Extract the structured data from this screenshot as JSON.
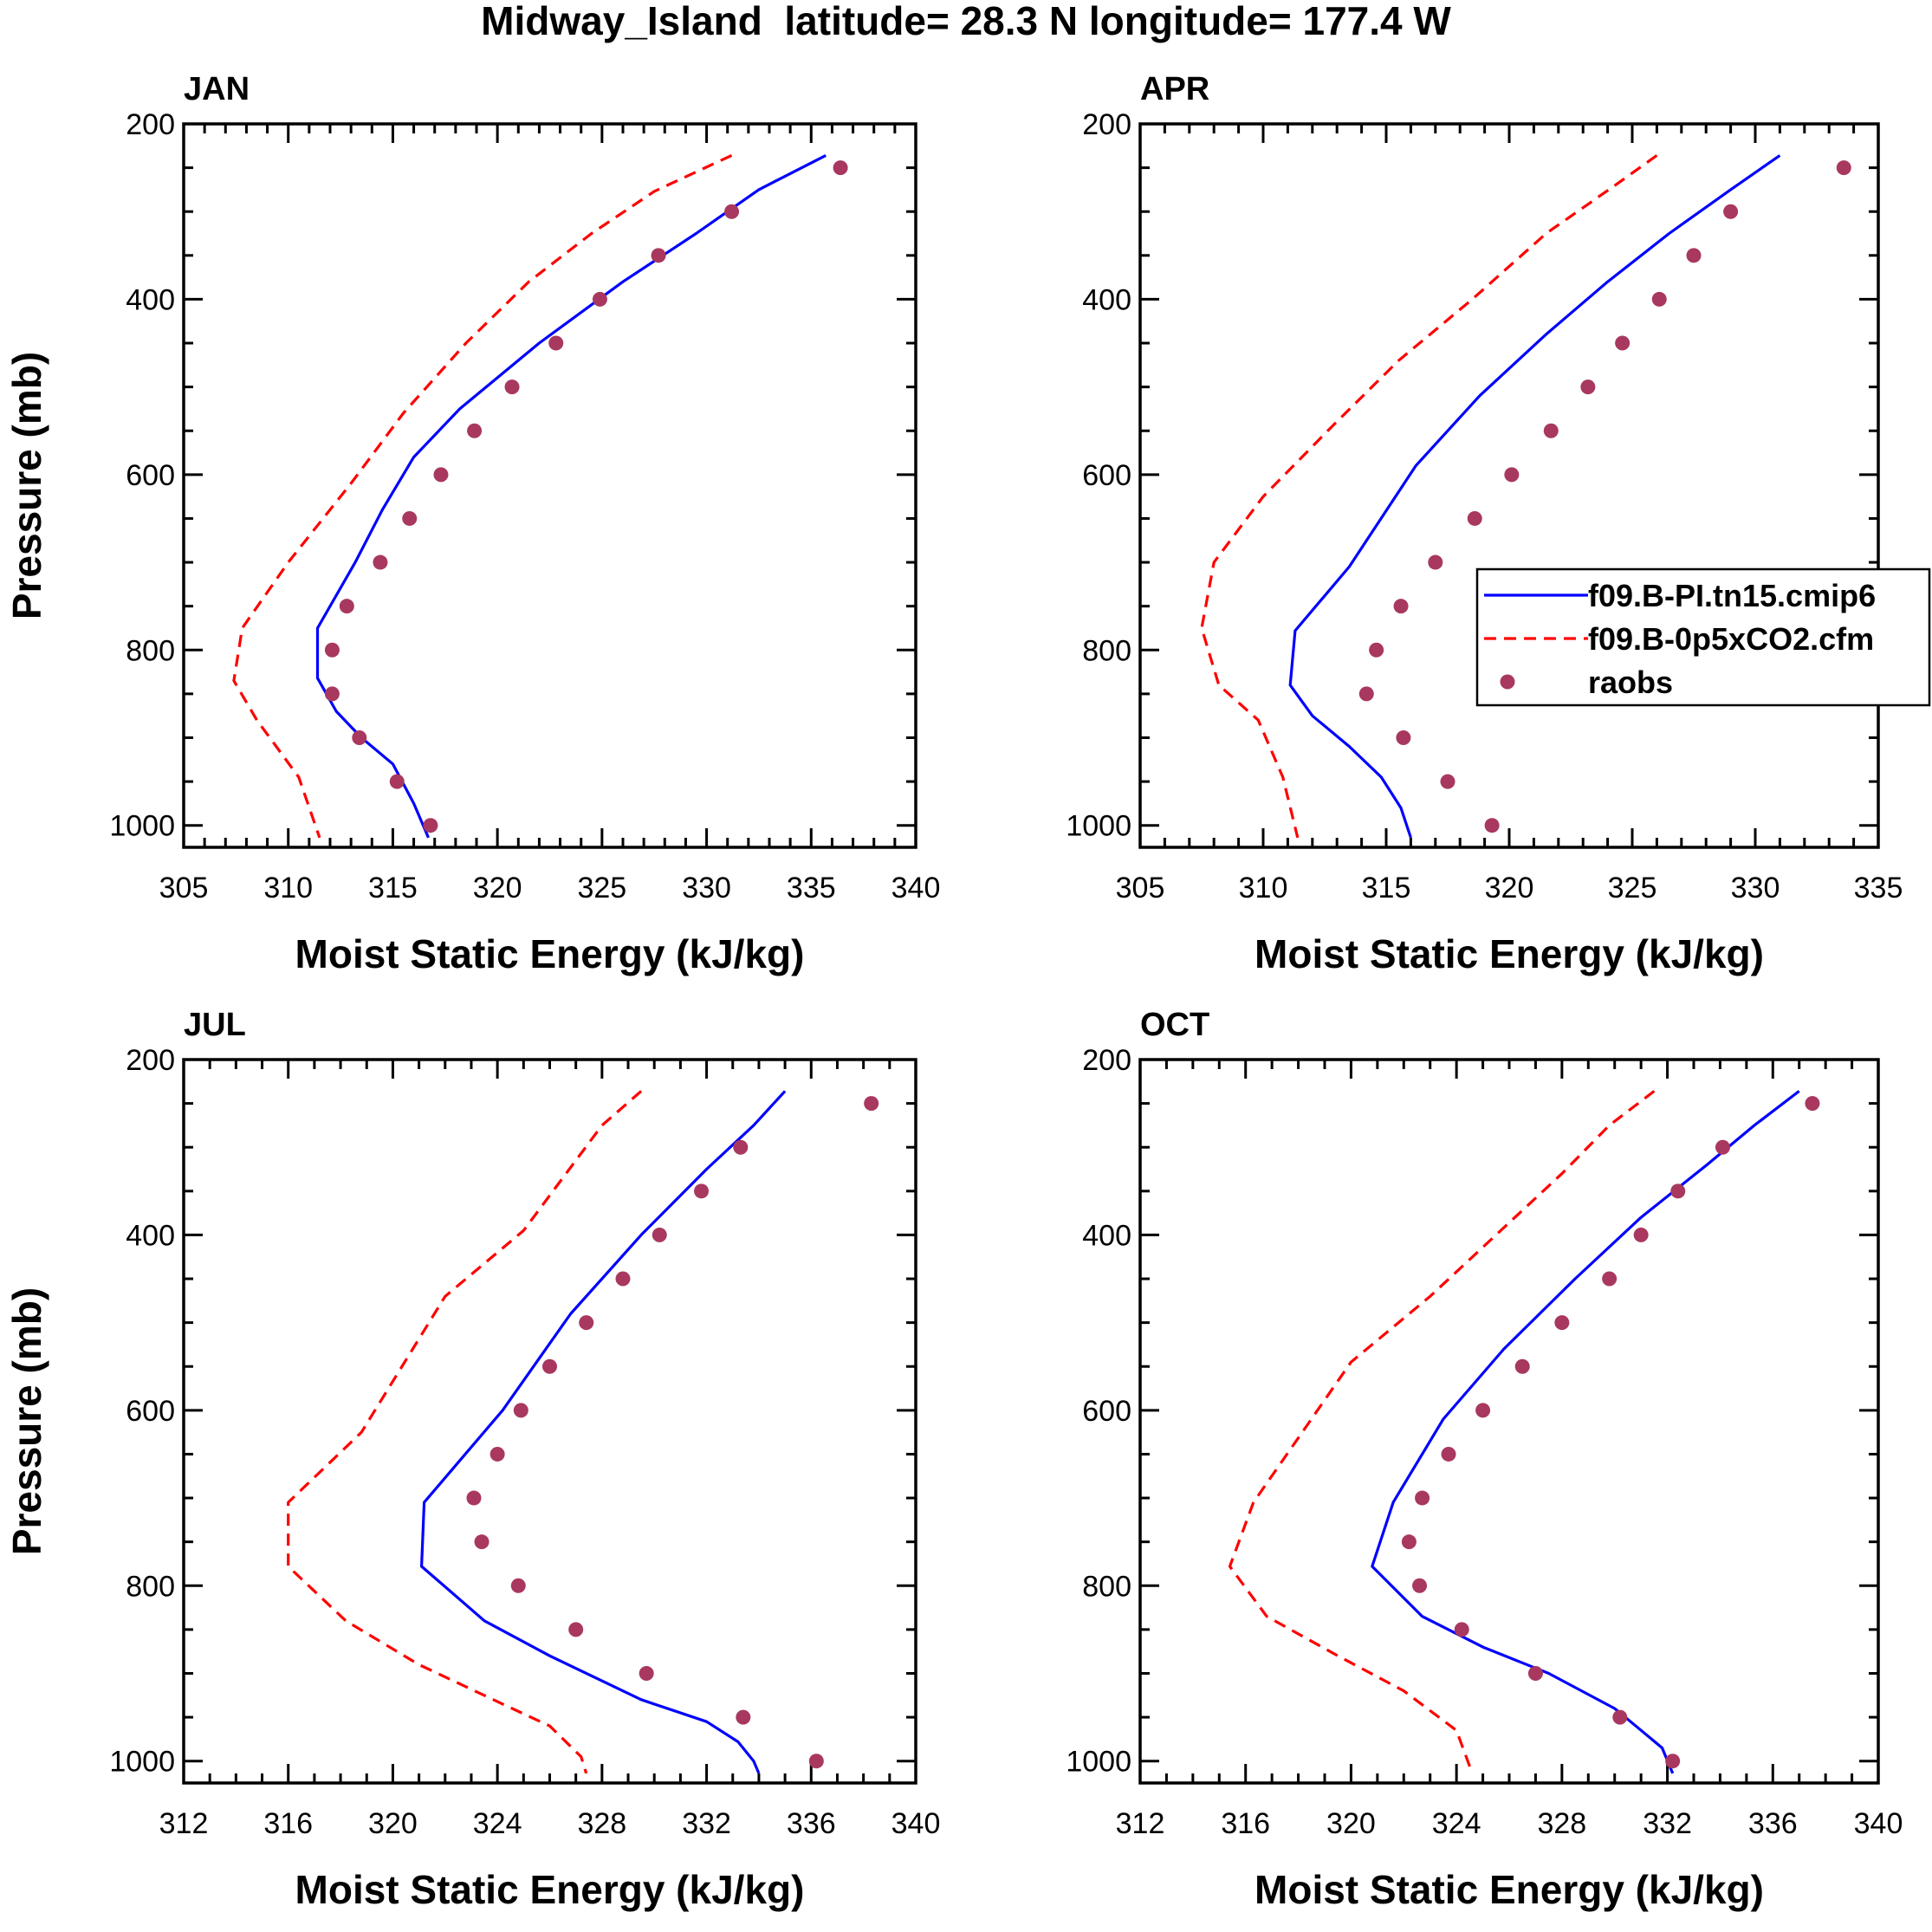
{
  "figure_title": "Midway_Island  latitude= 28.3 N longitude= 177.4 W",
  "legend": {
    "entries": [
      {
        "label": "f09.B-PI.tn15.cmip6",
        "style": "solid",
        "color": "#0000ff"
      },
      {
        "label": "f09.B-0p5xCO2.cfm",
        "style": "dashed",
        "color": "#ff0000"
      },
      {
        "label": "raobs",
        "style": "marker",
        "color": "#a8385f"
      }
    ]
  },
  "chart_data": [
    {
      "type": "line",
      "title": "JAN",
      "xlabel": "Moist Static Energy (kJ/kg)",
      "ylabel": "Pressure (mb)",
      "xlim": [
        305,
        340
      ],
      "xticks": [
        305,
        310,
        315,
        320,
        325,
        330,
        335,
        340
      ],
      "xminor": 1,
      "ylim": [
        200,
        1025
      ],
      "yticks": [
        200,
        400,
        600,
        800,
        1000
      ],
      "show_legend": false,
      "series": [
        {
          "name": "f09.B-PI.tn15.cmip6",
          "x": [
            335.7,
            332.5,
            329.5,
            326.0,
            322.0,
            318.2,
            316.0,
            314.5,
            313.2,
            311.4,
            311.4,
            312.3,
            313.5,
            315.0,
            316.0,
            316.7
          ],
          "y": [
            236,
            275,
            325,
            380,
            450,
            525,
            580,
            640,
            700,
            775,
            832,
            870,
            900,
            930,
            975,
            1014
          ]
        },
        {
          "name": "f09.B-0p5xCO2.cfm",
          "x": [
            331.2,
            327.5,
            324.5,
            321.5,
            318.5,
            315.5,
            313.0,
            310.0,
            307.8,
            307.4,
            308.5,
            310.5,
            311.5
          ],
          "y": [
            236,
            277,
            325,
            380,
            450,
            530,
            610,
            700,
            775,
            835,
            880,
            945,
            1014
          ]
        },
        {
          "name": "raobs",
          "x": [
            336.4,
            331.2,
            327.7,
            324.9,
            322.8,
            320.7,
            318.9,
            317.3,
            315.8,
            314.4,
            312.8,
            312.1,
            312.1,
            313.4,
            315.2,
            316.8
          ],
          "y": [
            250,
            300,
            350,
            400,
            450,
            500,
            550,
            600,
            650,
            700,
            750,
            800,
            850,
            900,
            950,
            1000
          ]
        }
      ]
    },
    {
      "type": "line",
      "title": "APR",
      "xlabel": "Moist Static Energy (kJ/kg)",
      "ylabel": "",
      "xlim": [
        305,
        335
      ],
      "xticks": [
        305,
        310,
        315,
        320,
        325,
        330,
        335
      ],
      "xminor": 1,
      "ylim": [
        200,
        1025
      ],
      "yticks": [
        200,
        400,
        600,
        800,
        1000
      ],
      "show_legend": true,
      "series": [
        {
          "name": "f09.B-PI.tn15.cmip6",
          "x": [
            331.0,
            329.0,
            326.5,
            324.0,
            321.5,
            318.8,
            316.2,
            313.5,
            311.3,
            311.1,
            312.0,
            313.5,
            314.8,
            315.6,
            316.0
          ],
          "y": [
            236,
            275,
            325,
            380,
            440,
            510,
            590,
            705,
            778,
            840,
            875,
            910,
            945,
            980,
            1014
          ]
        },
        {
          "name": "f09.B-0p5xCO2.cfm",
          "x": [
            326.0,
            324.2,
            321.5,
            318.5,
            315.5,
            312.8,
            310.0,
            308.0,
            307.5,
            308.2,
            309.8,
            310.8,
            311.4
          ],
          "y": [
            236,
            272,
            325,
            400,
            470,
            545,
            625,
            700,
            775,
            840,
            880,
            945,
            1014
          ]
        },
        {
          "name": "raobs",
          "x": [
            333.6,
            329.0,
            327.5,
            326.1,
            324.6,
            323.2,
            321.7,
            320.1,
            318.6,
            317.0,
            315.6,
            314.6,
            314.2,
            315.7,
            317.5,
            319.3
          ],
          "y": [
            250,
            300,
            350,
            400,
            450,
            500,
            550,
            600,
            650,
            700,
            750,
            800,
            850,
            900,
            950,
            1000
          ]
        }
      ]
    },
    {
      "type": "line",
      "title": "JUL",
      "xlabel": "Moist Static Energy (kJ/kg)",
      "ylabel": "Pressure (mb)",
      "xlim": [
        312,
        340
      ],
      "xticks": [
        312,
        316,
        320,
        324,
        328,
        332,
        336,
        340
      ],
      "xminor": 1,
      "ylim": [
        200,
        1025
      ],
      "yticks": [
        200,
        400,
        600,
        800,
        1000
      ],
      "show_legend": false,
      "series": [
        {
          "name": "f09.B-PI.tn15.cmip6",
          "x": [
            335.0,
            333.8,
            332.0,
            329.5,
            326.8,
            324.2,
            321.2,
            321.1,
            323.5,
            326.0,
            329.5,
            332.0,
            333.2,
            333.8,
            334.0
          ],
          "y": [
            236,
            275,
            325,
            400,
            490,
            600,
            705,
            778,
            840,
            880,
            930,
            955,
            978,
            1000,
            1014
          ]
        },
        {
          "name": "f09.B-0p5xCO2.cfm",
          "x": [
            329.5,
            328.0,
            326.5,
            325.0,
            322.0,
            318.8,
            316.0,
            316.0,
            318.2,
            321.0,
            324.2,
            326.0,
            327.2,
            327.4
          ],
          "y": [
            236,
            275,
            335,
            395,
            470,
            625,
            705,
            778,
            840,
            890,
            935,
            960,
            995,
            1014
          ]
        },
        {
          "name": "raobs",
          "x": [
            338.3,
            333.3,
            331.8,
            330.2,
            328.8,
            327.4,
            326.0,
            324.9,
            324.0,
            323.1,
            323.4,
            324.8,
            327.0,
            329.7,
            333.4,
            336.2
          ],
          "y": [
            250,
            300,
            350,
            400,
            450,
            500,
            550,
            600,
            650,
            700,
            750,
            800,
            850,
            900,
            950,
            1000
          ]
        }
      ]
    },
    {
      "type": "line",
      "title": "OCT",
      "xlabel": "Moist Static Energy (kJ/kg)",
      "ylabel": "",
      "xlim": [
        312,
        340
      ],
      "xticks": [
        312,
        316,
        320,
        324,
        328,
        332,
        336,
        340
      ],
      "xminor": 1,
      "ylim": [
        200,
        1025
      ],
      "yticks": [
        200,
        400,
        600,
        800,
        1000
      ],
      "show_legend": false,
      "series": [
        {
          "name": "f09.B-PI.tn15.cmip6",
          "x": [
            337.0,
            335.3,
            333.5,
            331.0,
            328.5,
            325.8,
            323.5,
            321.6,
            320.8,
            322.7,
            325.0,
            327.5,
            330.0,
            330.8,
            331.8,
            332.2
          ],
          "y": [
            236,
            275,
            320,
            380,
            450,
            530,
            610,
            705,
            778,
            835,
            870,
            900,
            940,
            960,
            985,
            1014
          ]
        },
        {
          "name": "f09.B-0p5xCO2.cfm",
          "x": [
            331.5,
            329.8,
            328.0,
            325.5,
            323.0,
            320.0,
            316.3,
            315.4,
            316.8,
            319.5,
            322.0,
            324.0,
            324.6
          ],
          "y": [
            236,
            275,
            330,
            400,
            470,
            545,
            705,
            778,
            835,
            880,
            920,
            965,
            1014
          ]
        },
        {
          "name": "raobs",
          "x": [
            337.5,
            334.1,
            332.4,
            331.0,
            329.8,
            328.0,
            326.5,
            325.0,
            323.7,
            322.7,
            322.2,
            322.6,
            324.2,
            327.0,
            330.2,
            332.2
          ],
          "y": [
            250,
            300,
            350,
            400,
            450,
            500,
            550,
            600,
            650,
            700,
            750,
            800,
            850,
            900,
            950,
            1000
          ]
        }
      ]
    }
  ]
}
